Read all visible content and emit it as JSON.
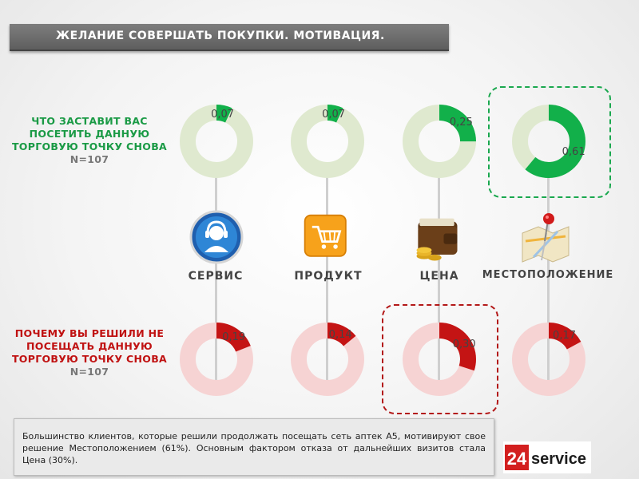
{
  "title": "ЖЕЛАНИЕ СОВЕРШАТЬ ПОКУПКИ. МОТИВАЦИЯ.",
  "question_positive": {
    "text": "ЧТО ЗАСТАВИТ ВАС ПОСЕТИТЬ ДАННУЮ ТОРГОВУЮ ТОЧКУ СНОВА",
    "n": "N=107"
  },
  "question_negative": {
    "text": "ПОЧЕМУ ВЫ РЕШИЛИ НЕ ПОСЕЩАТЬ ДАННУЮ ТОРГОВУЮ ТОЧКУ СНОВА",
    "n": "N=107"
  },
  "categories": [
    {
      "label": "СЕРВИС",
      "icon": "support-headset-icon"
    },
    {
      "label": "ПРОДУКТ",
      "icon": "shopping-cart-icon"
    },
    {
      "label": "ЦЕНА",
      "icon": "wallet-coins-icon"
    },
    {
      "label": "МЕСТОПОЛОЖЕНИЕ",
      "icon": "map-pin-icon"
    }
  ],
  "chart_data": [
    {
      "type": "pie",
      "title": "ЧТО ЗАСТАВИТ ВАС ПОСЕТИТЬ ДАННУЮ ТОРГОВУЮ ТОЧКУ СНОВА",
      "categories": [
        "СЕРВИС",
        "ПРОДУКТ",
        "ЦЕНА",
        "МЕСТОПОЛОЖЕНИЕ"
      ],
      "values": [
        0.07,
        0.07,
        0.25,
        0.61
      ],
      "value_labels": [
        "0,07",
        "0,07",
        "0,25",
        "0,61"
      ],
      "highlight_index": 3
    },
    {
      "type": "pie",
      "title": "ПОЧЕМУ ВЫ РЕШИЛИ НЕ ПОСЕЩАТЬ ДАННУЮ ТОРГОВУЮ ТОЧКУ СНОВА",
      "categories": [
        "СЕРВИС",
        "ПРОДУКТ",
        "ЦЕНА",
        "МЕСТОПОЛОЖЕНИЕ"
      ],
      "values": [
        0.19,
        0.14,
        0.3,
        0.17
      ],
      "value_labels": [
        "0,19",
        "0,14",
        "0,30",
        "0,17"
      ],
      "highlight_index": 2
    }
  ],
  "colors": {
    "positive_fill": "#12b04a",
    "positive_track": "#dfe9cf",
    "negative_fill": "#c41414",
    "negative_track": "#f6d3d3",
    "positive_text": "#1a9a45",
    "negative_text": "#c01212"
  },
  "summary": "Большинство клиентов, которые решили продолжать посещать сеть аптек А5, мотивируют свое решение Местоположением (61%). Основным фактором отказа от дальнейших визитов стала Цена (30%).",
  "logo": {
    "number": "24",
    "text": "service"
  }
}
